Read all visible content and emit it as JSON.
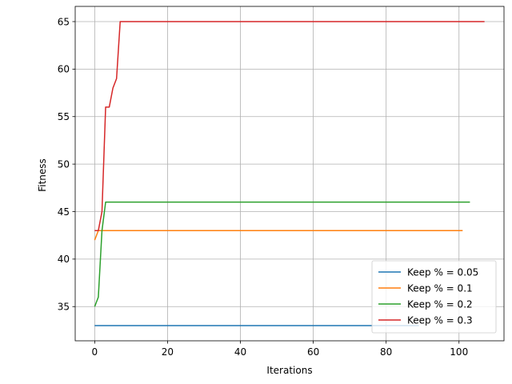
{
  "chart_data": {
    "type": "line",
    "title": "",
    "xlabel": "Iterations",
    "ylabel": "Fitness",
    "xlim": [
      -5.35,
      112.35
    ],
    "ylim": [
      31.4,
      66.6
    ],
    "xticks": [
      0,
      20,
      40,
      60,
      80,
      100
    ],
    "yticks": [
      35,
      40,
      45,
      50,
      55,
      60,
      65
    ],
    "grid": true,
    "legend_position": "bottom-right",
    "series": [
      {
        "name": "Keep % = 0.05",
        "color": "#1f77b4",
        "x": [
          0,
          89
        ],
        "y": [
          33,
          33
        ]
      },
      {
        "name": "Keep % = 0.1",
        "color": "#ff7f0e",
        "x": [
          0,
          1,
          2,
          101
        ],
        "y": [
          42,
          43,
          43,
          43
        ]
      },
      {
        "name": "Keep % = 0.2",
        "color": "#2ca02c",
        "x": [
          0,
          1,
          2,
          3,
          103
        ],
        "y": [
          35,
          36,
          43,
          46,
          46
        ]
      },
      {
        "name": "Keep % = 0.3",
        "color": "#d62728",
        "x": [
          0,
          1,
          2,
          3,
          4,
          5,
          6,
          7,
          107
        ],
        "y": [
          43,
          43,
          45,
          56,
          56,
          58,
          59,
          65,
          65
        ]
      }
    ]
  }
}
